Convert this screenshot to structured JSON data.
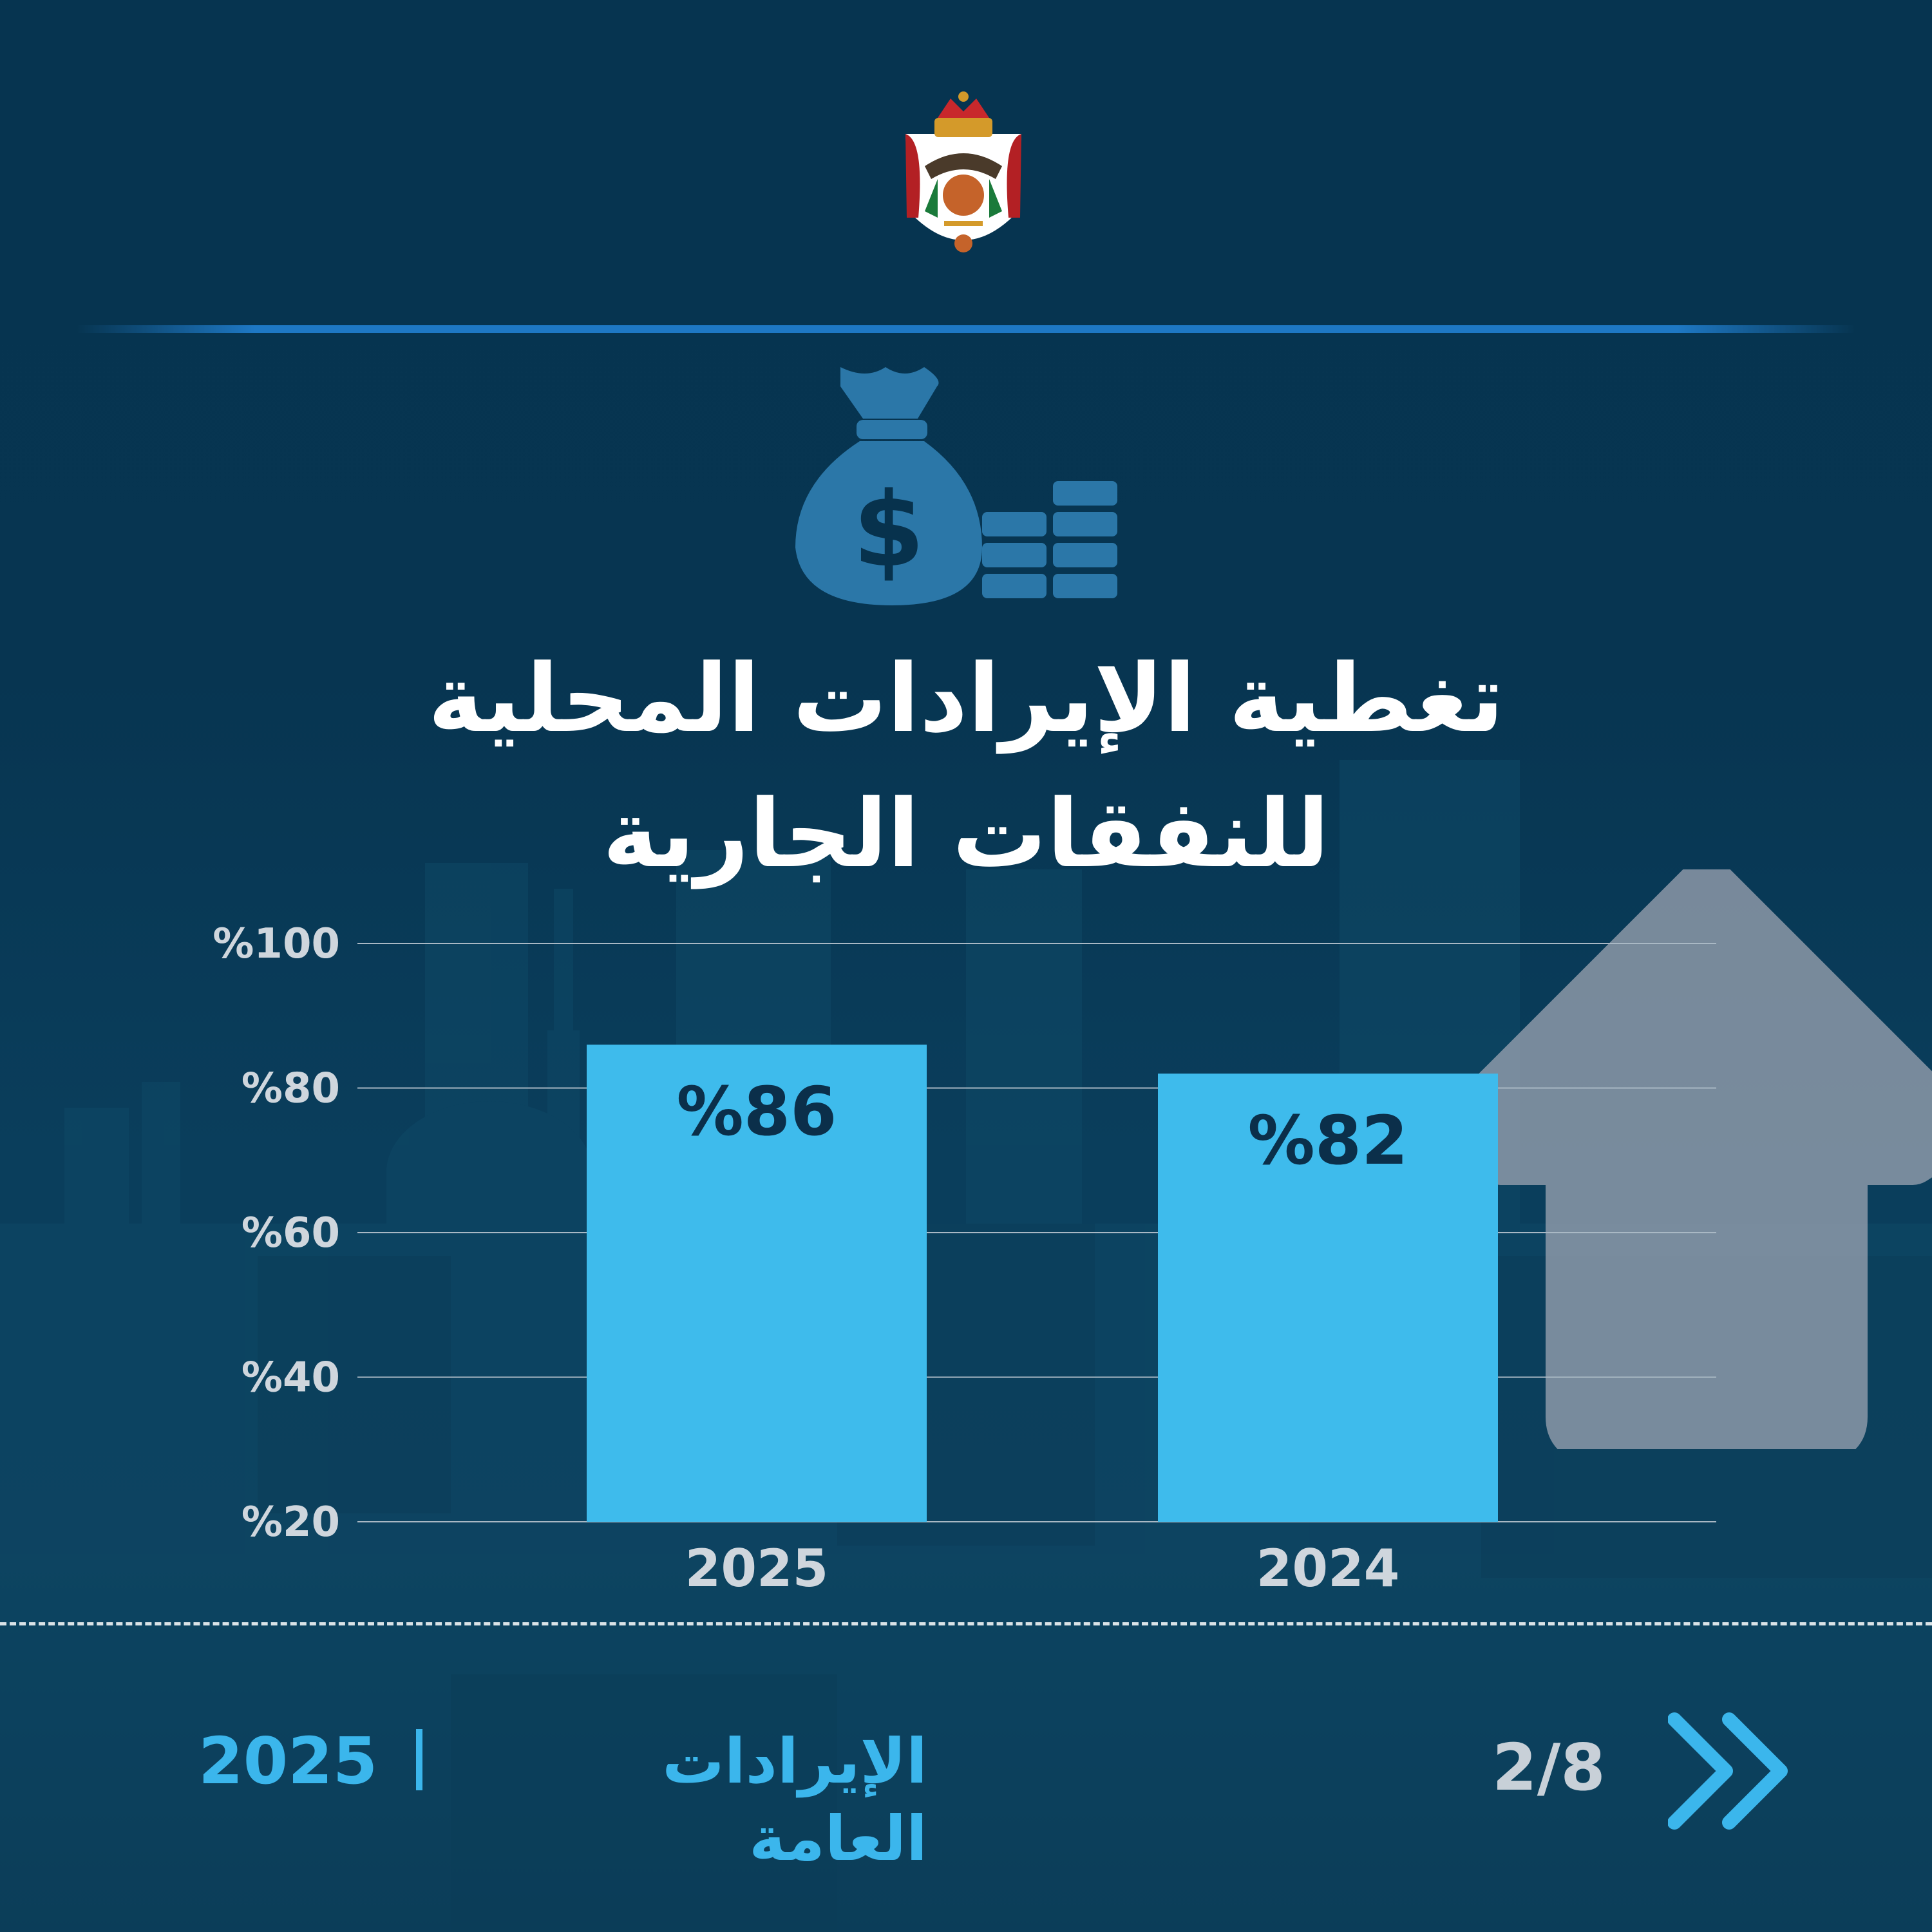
{
  "header": {
    "emblem": "jordan-coat-of-arms-icon"
  },
  "illustration": {
    "icon": "money-bag-coins-icon"
  },
  "title_lines": [
    "تغطية الإيرادات المحلية",
    "للنفقات الجارية"
  ],
  "chart_data": {
    "type": "bar",
    "categories": [
      "2025",
      "2024"
    ],
    "values": [
      86,
      82
    ],
    "data_labels": [
      "%86",
      "%82"
    ],
    "y_tick_labels": [
      "%20",
      "%40",
      "%60",
      "%80",
      "%100"
    ],
    "y_ticks": [
      20,
      40,
      60,
      80,
      100
    ],
    "ylim": [
      20,
      100
    ],
    "grid": true,
    "colors": {
      "bar": "#3ebbec",
      "label": "#0b2f4a",
      "tick": "#cfd6dd",
      "grid": "#a9b8c4"
    }
  },
  "decor": {
    "arrow": "up-arrow-icon"
  },
  "footer": {
    "year": "2025",
    "topic": "الإيرادات العامة",
    "page": "2/8",
    "next_icon": "double-chevron-right-icon"
  }
}
